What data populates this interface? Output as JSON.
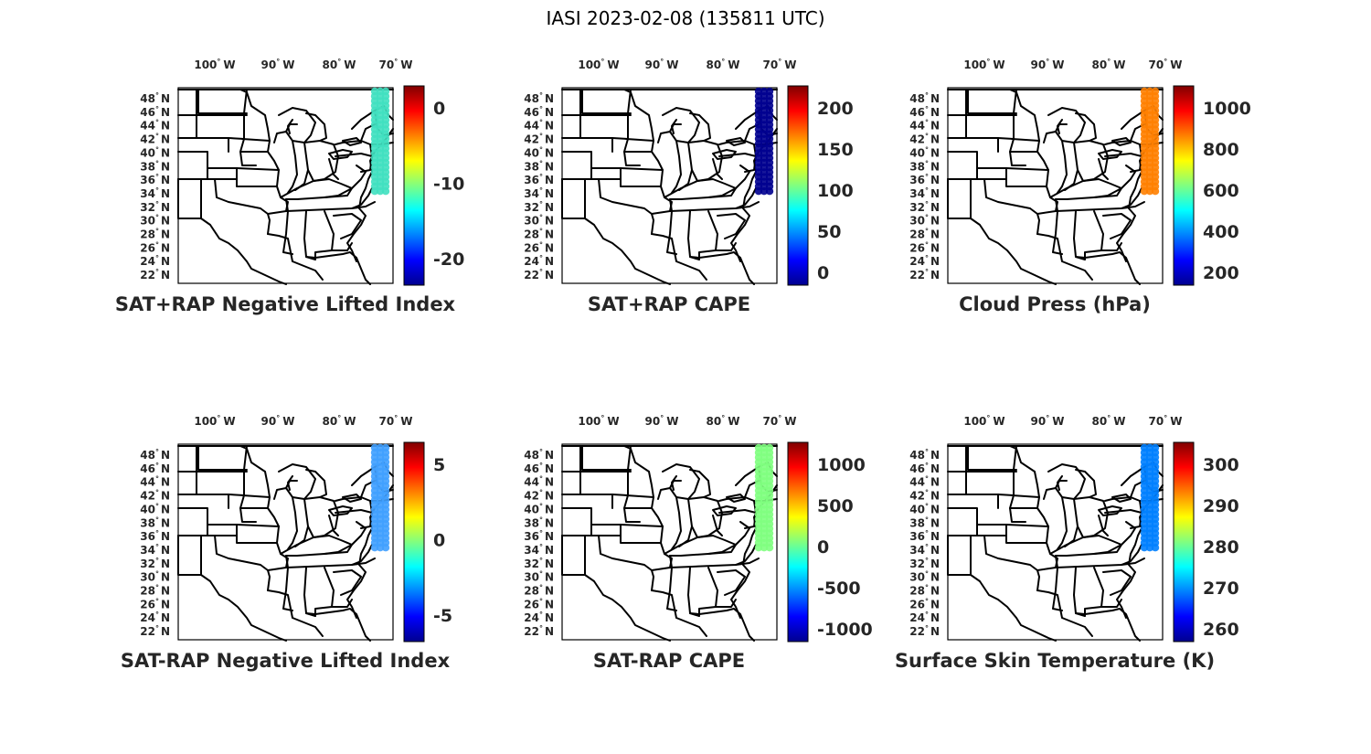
{
  "figure_title": "IASI 2023-02-08 (135811 UTC)",
  "colormap": [
    "#00008f",
    "#0000ff",
    "#0080ff",
    "#00ffff",
    "#80ff80",
    "#ffff00",
    "#ff8000",
    "#ff0000",
    "#800000"
  ],
  "longitude_ticks": [
    "100",
    "90",
    "80",
    "70"
  ],
  "longitude_suffix": "W",
  "latitude_ticks": [
    "48",
    "46",
    "44",
    "42",
    "40",
    "38",
    "36",
    "34",
    "32",
    "30",
    "28",
    "26",
    "24",
    "22"
  ],
  "latitude_suffix": "N",
  "degree_symbol": "°",
  "panels": [
    {
      "id": "p1",
      "title": "SAT+RAP Negative Lifted Index",
      "colorbar": {
        "ticks": [
          "0",
          "-10",
          "-20"
        ]
      },
      "data_color": "#40e0c0"
    },
    {
      "id": "p2",
      "title": "SAT+RAP CAPE",
      "colorbar": {
        "ticks": [
          "200",
          "150",
          "100",
          "50",
          "0"
        ]
      },
      "data_color": "#00008f"
    },
    {
      "id": "p3",
      "title": "Cloud Press (hPa)",
      "colorbar": {
        "ticks": [
          "1000",
          "800",
          "600",
          "400",
          "200"
        ]
      },
      "data_color": "#ff8000"
    },
    {
      "id": "p4",
      "title": "SAT-RAP Negative Lifted Index",
      "colorbar": {
        "ticks": [
          "5",
          "0",
          "-5"
        ]
      },
      "data_color": "#40a0ff"
    },
    {
      "id": "p5",
      "title": "SAT-RAP CAPE",
      "colorbar": {
        "ticks": [
          "1000",
          "500",
          "0",
          "-500",
          "-1000"
        ]
      },
      "data_color": "#80ff80"
    },
    {
      "id": "p6",
      "title": "Surface Skin Temperature (K)",
      "colorbar": {
        "ticks": [
          "300",
          "290",
          "280",
          "270",
          "260"
        ]
      },
      "data_color": "#0080ff"
    }
  ]
}
